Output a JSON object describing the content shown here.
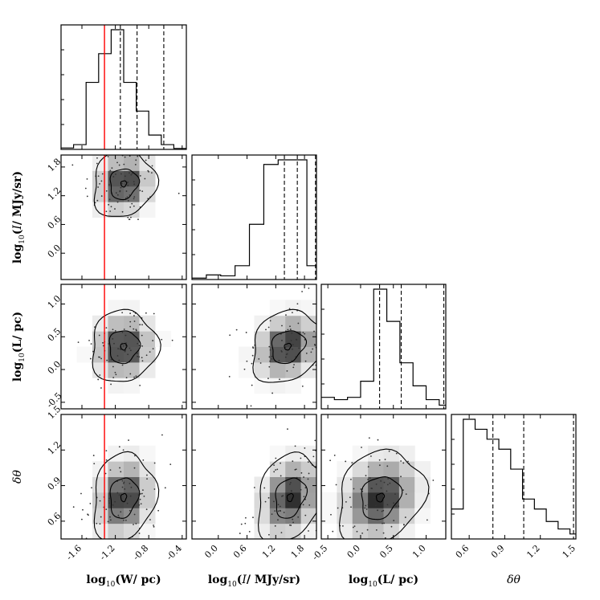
{
  "chart_data": {
    "type": "corner",
    "params": [
      {
        "key": "W",
        "label": "log10(W/ pc)"
      },
      {
        "key": "I",
        "label": "log10(I/ MJy/sr)"
      },
      {
        "key": "L",
        "label": "log10(L/ pc)"
      },
      {
        "key": "dtheta",
        "label": "δθ"
      }
    ],
    "axis_labels": {
      "x": [
        {
          "pre": "log",
          "sub": "10",
          "post": "(W/ pc)"
        },
        {
          "pre": "log",
          "sub": "10",
          "ital": "I",
          "post": "/ MJy/sr)"
        },
        {
          "pre": "log",
          "sub": "10",
          "post": "(L/ pc)"
        },
        {
          "greek": "δθ"
        }
      ],
      "y": [
        null,
        {
          "pre": "log",
          "sub": "10",
          "ital": "I",
          "post": "/ MJy/sr)"
        },
        {
          "pre": "log",
          "sub": "10",
          "post": "(L/ pc)"
        },
        {
          "greek": "δθ"
        }
      ]
    },
    "ranges": {
      "W": [
        -1.85,
        -0.35
      ],
      "I": [
        -0.55,
        2.05
      ],
      "L": [
        -0.6,
        1.3
      ],
      "dtheta": [
        0.45,
        1.5
      ]
    },
    "ticks": {
      "W": [
        "-1.6",
        "-1.2",
        "-0.8",
        "-0.4"
      ],
      "I": [
        "0.0",
        "0.6",
        "1.2",
        "1.8"
      ],
      "L": [
        "-0.5",
        "0.0",
        "0.5",
        "1.0"
      ],
      "dtheta": [
        "0.6",
        "0.9",
        "1.2",
        "1.5"
      ]
    },
    "truth": {
      "param": "W",
      "value": -1.33,
      "color": "#ff0000"
    },
    "histograms": {
      "W": {
        "bins": [
          -1.85,
          -1.7,
          -1.55,
          -1.4,
          -1.25,
          -1.1,
          -0.95,
          -0.8,
          -0.65,
          -0.5,
          -0.35
        ],
        "counts": [
          0.3,
          1,
          14,
          20,
          25,
          14,
          8,
          3,
          1,
          0.2
        ],
        "quantiles": [
          -1.14,
          -0.94,
          -0.62
        ]
      },
      "I": {
        "bins": [
          -0.55,
          -0.25,
          0.05,
          0.35,
          0.65,
          0.95,
          1.25,
          1.55,
          1.85,
          2.05
        ],
        "counts": [
          0.3,
          1,
          0.8,
          3,
          12,
          25,
          26,
          26,
          3
        ],
        "quantiles": [
          1.38,
          1.65,
          2.03
        ]
      },
      "L": {
        "bins": [
          -0.6,
          -0.4,
          -0.2,
          0.0,
          0.2,
          0.4,
          0.6,
          0.8,
          1.0,
          1.2,
          1.3
        ],
        "counts": [
          2.5,
          2,
          2.5,
          6,
          26,
          19,
          10,
          5,
          2,
          0.8
        ],
        "quantiles": [
          0.29,
          0.62,
          1.27
        ]
      },
      "dtheta": {
        "bins": [
          0.45,
          0.55,
          0.65,
          0.75,
          0.85,
          0.95,
          1.05,
          1.15,
          1.25,
          1.35,
          1.45,
          1.5
        ],
        "counts": [
          6,
          24,
          22,
          20,
          18,
          14,
          8,
          6,
          3.5,
          2,
          1
        ],
        "quantiles": [
          0.8,
          1.06,
          1.48
        ]
      }
    },
    "joint": [
      {
        "x": "W",
        "y": "I",
        "cx": -1.1,
        "cy": 1.45,
        "sx": 0.17,
        "sy": 0.32,
        "rho": 0.1
      },
      {
        "x": "W",
        "y": "L",
        "cx": -1.1,
        "cy": 0.35,
        "sx": 0.18,
        "sy": 0.25,
        "rho": 0.05
      },
      {
        "x": "I",
        "y": "L",
        "cx": 1.45,
        "cy": 0.35,
        "sx": 0.35,
        "sy": 0.25,
        "rho": 0.2
      },
      {
        "x": "W",
        "y": "dtheta",
        "cx": -1.1,
        "cy": 0.8,
        "sx": 0.17,
        "sy": 0.17,
        "rho": 0.15
      },
      {
        "x": "I",
        "y": "dtheta",
        "cx": 1.5,
        "cy": 0.8,
        "sx": 0.32,
        "sy": 0.17,
        "rho": 0.25
      },
      {
        "x": "L",
        "y": "dtheta",
        "cx": 0.3,
        "cy": 0.8,
        "sx": 0.3,
        "sy": 0.18,
        "rho": 0.2
      }
    ],
    "contour_levels": [
      0.2,
      1.0,
      2.2
    ],
    "num_scatter_points_per_panel": 90
  }
}
